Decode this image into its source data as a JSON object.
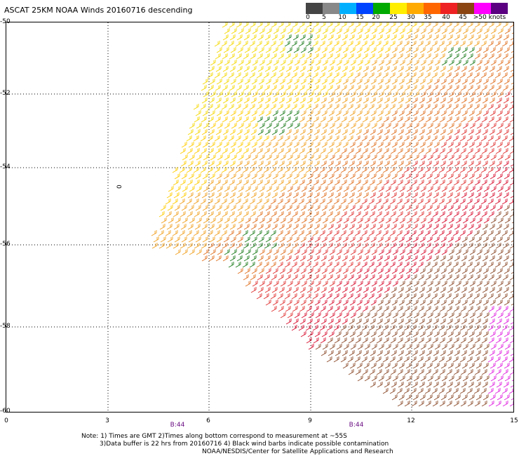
{
  "title": "ASCAT 25KM NOAA Winds 20160716 descending",
  "colorbar": {
    "labels": [
      "0",
      "5",
      "10",
      "15",
      "20",
      "25",
      "30",
      "35",
      "40",
      "45",
      ">50 knots"
    ],
    "colors": [
      "#444444",
      "#888888",
      "#00b0ff",
      "#0044ff",
      "#00aa00",
      "#ffee00",
      "#ffaa00",
      "#ff6600",
      "#ee2222",
      "#8b4513",
      "#ff00ff",
      "#5a0080"
    ]
  },
  "axes": {
    "lat_labels": [
      "-50",
      "-52",
      "-54",
      "-56",
      "-58",
      "-60"
    ],
    "lon_labels": [
      "0",
      "3",
      "6",
      "9",
      "12",
      "15"
    ]
  },
  "time_markers": [
    "B:44",
    "B:44"
  ],
  "annotation_zero": "0",
  "notes": {
    "line1": "Note: 1) Times are GMT 2)Times along bottom correspond to measurement at ~55S",
    "line2": "3)Data buffer is 22 hrs from 20160716 4) Black wind barbs indicate possible contamination",
    "line3": "NOAA/NESDIS/Center for Satellite Applications and Research"
  }
}
